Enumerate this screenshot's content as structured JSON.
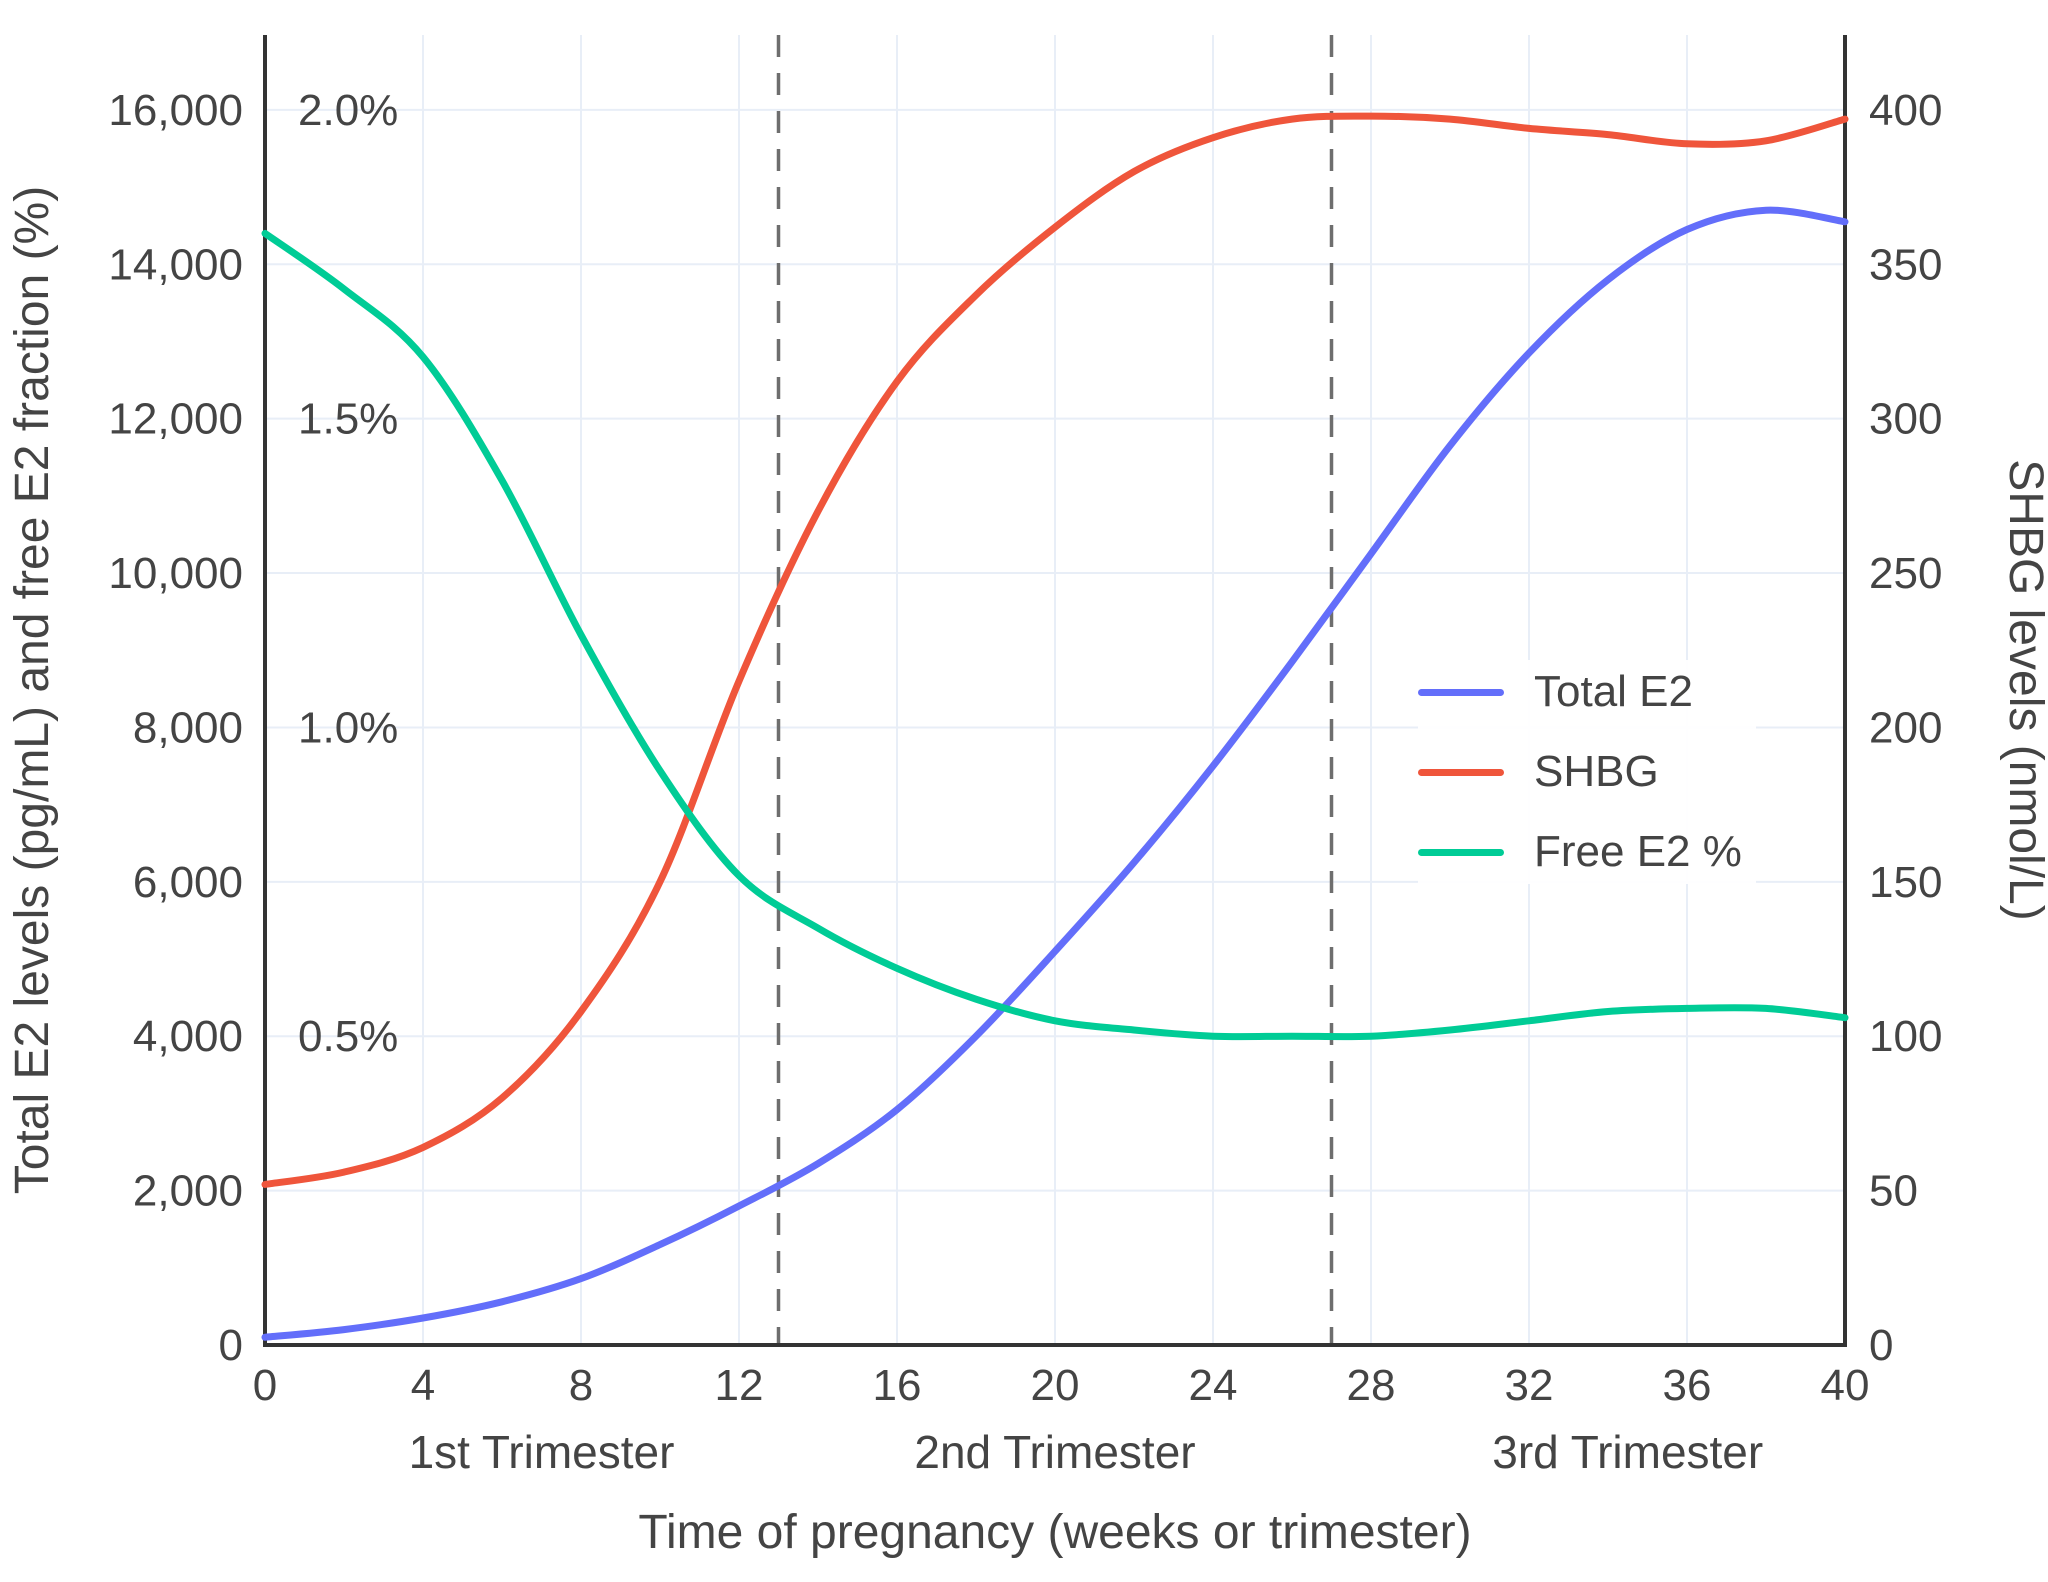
{
  "colors": {
    "total_e2": "#636efa",
    "shbg": "#ef553b",
    "free_e2": "#00cc96",
    "grid": "#e8eef7",
    "axis": "#333333",
    "dashed_line": "#6e6e6e",
    "text": "#444444",
    "background": "#ffffff"
  },
  "chart_data": {
    "type": "line",
    "title": "",
    "xlabel": "Time of pregnancy (weeks or trimester)",
    "ylabel_left": "Total E2 levels (pg/mL) and free E2 fraction (%)",
    "ylabel_right": "SHBG levels (nmol/L)",
    "grid": true,
    "legend_position": "middle-right",
    "x_range": [
      0,
      40
    ],
    "y_left_range": [
      0,
      16970
    ],
    "y_right_range": [
      0,
      424.25
    ],
    "y_percent_range": [
      0,
      2.12125
    ],
    "x_ticks": [
      {
        "v": 0,
        "label": "0"
      },
      {
        "v": 4,
        "label": "4"
      },
      {
        "v": 8,
        "label": "8"
      },
      {
        "v": 12,
        "label": "12"
      },
      {
        "v": 16,
        "label": "16"
      },
      {
        "v": 20,
        "label": "20"
      },
      {
        "v": 24,
        "label": "24"
      },
      {
        "v": 28,
        "label": "28"
      },
      {
        "v": 32,
        "label": "32"
      },
      {
        "v": 36,
        "label": "36"
      },
      {
        "v": 40,
        "label": "40"
      }
    ],
    "y_left_ticks": [
      {
        "v": 0,
        "label": "0"
      },
      {
        "v": 2000,
        "label": "2,000"
      },
      {
        "v": 4000,
        "label": "4,000"
      },
      {
        "v": 6000,
        "label": "6,000"
      },
      {
        "v": 8000,
        "label": "8,000"
      },
      {
        "v": 10000,
        "label": "10,000"
      },
      {
        "v": 12000,
        "label": "12,000"
      },
      {
        "v": 14000,
        "label": "14,000"
      },
      {
        "v": 16000,
        "label": "16,000"
      }
    ],
    "y_left_percent_ticks": [
      {
        "v": 4000,
        "label": "0.5%"
      },
      {
        "v": 8000,
        "label": "1.0%"
      },
      {
        "v": 12000,
        "label": "1.5%"
      },
      {
        "v": 16000,
        "label": "2.0%"
      }
    ],
    "y_right_ticks": [
      {
        "v": 0,
        "label": "0"
      },
      {
        "v": 50,
        "label": "50"
      },
      {
        "v": 100,
        "label": "100"
      },
      {
        "v": 150,
        "label": "150"
      },
      {
        "v": 200,
        "label": "200"
      },
      {
        "v": 250,
        "label": "250"
      },
      {
        "v": 300,
        "label": "300"
      },
      {
        "v": 350,
        "label": "350"
      },
      {
        "v": 400,
        "label": "400"
      }
    ],
    "trimester_boundaries_weeks": [
      13,
      27
    ],
    "trimester_labels": [
      {
        "x": 7,
        "label": "1st Trimester"
      },
      {
        "x": 20,
        "label": "2nd Trimester"
      },
      {
        "x": 34.5,
        "label": "3rd Trimester"
      }
    ],
    "series": [
      {
        "name": "Total E2",
        "axis": "left",
        "color": "#636efa",
        "x": [
          0,
          2,
          4,
          6,
          8,
          10,
          12,
          14,
          16,
          18,
          20,
          22,
          24,
          26,
          28,
          30,
          32,
          34,
          36,
          38,
          40
        ],
        "y": [
          100,
          200,
          350,
          560,
          860,
          1300,
          1800,
          2350,
          3050,
          4000,
          5100,
          6250,
          7500,
          8850,
          10250,
          11650,
          12850,
          13800,
          14450,
          14700,
          14550
        ]
      },
      {
        "name": "SHBG",
        "axis": "right",
        "color": "#ef553b",
        "x": [
          0,
          2,
          4,
          6,
          8,
          10,
          12,
          14,
          16,
          18,
          20,
          22,
          24,
          26,
          28,
          30,
          32,
          34,
          36,
          38,
          40
        ],
        "y": [
          52,
          56,
          64,
          80,
          108,
          150,
          215,
          270,
          312,
          340,
          362,
          380,
          391,
          397,
          398,
          397,
          394,
          392,
          389,
          390,
          397
        ]
      },
      {
        "name": "Free E2 %",
        "axis": "percent",
        "color": "#00cc96",
        "x": [
          0,
          2,
          4,
          6,
          8,
          10,
          12,
          14,
          16,
          18,
          20,
          22,
          24,
          26,
          28,
          30,
          32,
          34,
          36,
          38,
          40
        ],
        "y": [
          1.8,
          1.71,
          1.6,
          1.4,
          1.15,
          0.93,
          0.76,
          0.675,
          0.61,
          0.56,
          0.525,
          0.51,
          0.5,
          0.5,
          0.5,
          0.51,
          0.525,
          0.54,
          0.545,
          0.545,
          0.53
        ]
      }
    ]
  }
}
